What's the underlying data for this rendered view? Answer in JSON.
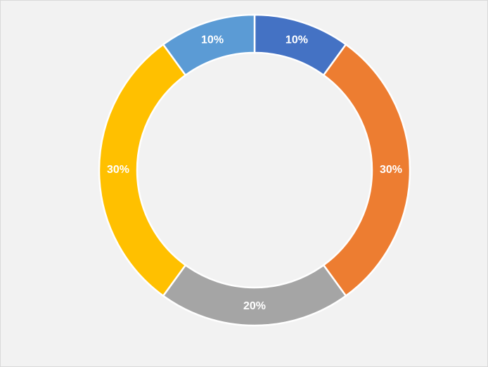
{
  "chart_data": {
    "type": "donut",
    "values": [
      10,
      30,
      20,
      30,
      10
    ],
    "value_labels": [
      "10%",
      "30%",
      "20%",
      "30%",
      "10%"
    ],
    "colors": [
      "#4472c4",
      "#ed7d31",
      "#a5a5a5",
      "#ffc000",
      "#5b9bd5"
    ]
  }
}
